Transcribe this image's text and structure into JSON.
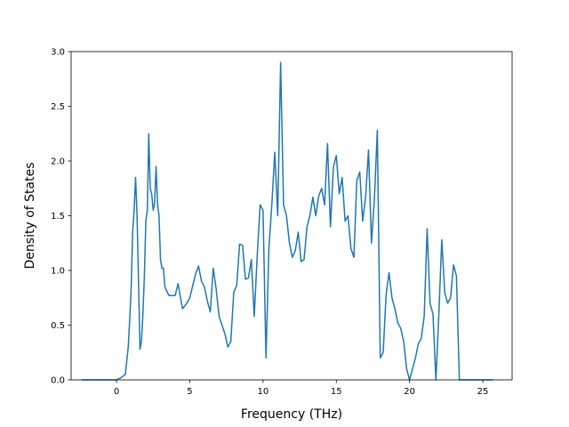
{
  "chart_data": {
    "type": "line",
    "title": "",
    "xlabel": "Frequency (THz)",
    "ylabel": "Density of States",
    "xlim": [
      -3.1,
      27.0
    ],
    "ylim": [
      0.0,
      3.0
    ],
    "x_ticks": [
      0,
      5,
      10,
      15,
      20,
      25
    ],
    "x_tick_labels": [
      "0",
      "5",
      "10",
      "15",
      "20",
      "25"
    ],
    "y_ticks": [
      0.0,
      0.5,
      1.0,
      1.5,
      2.0,
      2.5,
      3.0
    ],
    "y_tick_labels": [
      "0.0",
      "0.5",
      "1.0",
      "1.5",
      "2.0",
      "2.5",
      "3.0"
    ],
    "grid": false,
    "legend": "none",
    "line_color": "#1f77b4",
    "series": [
      {
        "x": [
          -2.4,
          0.0,
          0.3,
          0.6,
          0.8,
          0.9,
          1.0,
          1.1,
          1.2,
          1.3,
          1.4,
          1.5,
          1.6,
          1.7,
          1.8,
          1.9,
          2.0,
          2.1,
          2.2,
          2.3,
          2.4,
          2.5,
          2.6,
          2.7,
          2.8,
          2.9,
          3.0,
          3.1,
          3.2,
          3.3,
          3.4,
          3.5,
          3.6,
          3.7,
          3.8,
          3.9,
          4.0,
          4.2,
          4.5,
          4.8,
          5.0,
          5.2,
          5.4,
          5.6,
          5.8,
          6.0,
          6.2,
          6.4,
          6.6,
          6.8,
          7.0,
          7.2,
          7.4,
          7.6,
          7.8,
          8.0,
          8.2,
          8.4,
          8.6,
          8.8,
          9.0,
          9.2,
          9.4,
          9.6,
          9.8,
          10.0,
          10.2,
          10.4,
          10.6,
          10.8,
          11.0,
          11.2,
          11.4,
          11.6,
          11.8,
          12.0,
          12.2,
          12.4,
          12.6,
          12.8,
          13.0,
          13.2,
          13.4,
          13.6,
          13.8,
          14.0,
          14.2,
          14.4,
          14.6,
          14.8,
          15.0,
          15.2,
          15.4,
          15.6,
          15.8,
          16.0,
          16.2,
          16.4,
          16.6,
          16.8,
          17.0,
          17.2,
          17.4,
          17.6,
          17.8,
          18.0,
          18.2,
          18.4,
          18.6,
          18.8,
          19.0,
          19.2,
          19.4,
          19.6,
          19.8,
          20.0,
          20.2,
          20.4,
          20.6,
          20.8,
          21.0,
          21.2,
          21.4,
          21.6,
          21.8,
          22.0,
          22.2,
          22.4,
          22.6,
          22.8,
          23.0,
          23.2,
          23.4,
          23.6,
          23.8,
          25.7
        ],
        "y": [
          0.0,
          0.0,
          0.02,
          0.05,
          0.3,
          0.55,
          0.85,
          1.35,
          1.55,
          1.85,
          1.5,
          0.9,
          0.28,
          0.35,
          0.6,
          0.95,
          1.45,
          1.55,
          2.25,
          1.75,
          1.7,
          1.55,
          1.62,
          1.95,
          1.6,
          1.5,
          1.1,
          1.02,
          1.02,
          0.85,
          0.82,
          0.79,
          0.77,
          0.77,
          0.77,
          0.77,
          0.77,
          0.88,
          0.65,
          0.7,
          0.75,
          0.86,
          0.97,
          1.04,
          0.9,
          0.85,
          0.72,
          0.62,
          1.02,
          0.83,
          0.58,
          0.5,
          0.42,
          0.3,
          0.35,
          0.8,
          0.86,
          1.24,
          1.23,
          0.92,
          0.93,
          1.1,
          0.58,
          1.13,
          1.6,
          1.55,
          0.2,
          1.2,
          1.6,
          2.08,
          1.5,
          2.9,
          1.6,
          1.5,
          1.25,
          1.12,
          1.18,
          1.35,
          1.08,
          1.1,
          1.4,
          1.5,
          1.67,
          1.5,
          1.68,
          1.75,
          1.6,
          2.16,
          1.4,
          1.94,
          2.05,
          1.7,
          1.85,
          1.45,
          1.5,
          1.2,
          1.12,
          1.82,
          1.9,
          1.45,
          1.67,
          2.1,
          1.25,
          1.65,
          2.28,
          0.2,
          0.25,
          0.78,
          0.98,
          0.75,
          0.65,
          0.52,
          0.47,
          0.35,
          0.1,
          0.0,
          0.1,
          0.2,
          0.33,
          0.38,
          0.58,
          1.38,
          0.7,
          0.6,
          0.0,
          0.6,
          1.28,
          0.8,
          0.7,
          0.75,
          1.05,
          0.95,
          0.0,
          0.0,
          0.0,
          0.0
        ]
      }
    ]
  }
}
